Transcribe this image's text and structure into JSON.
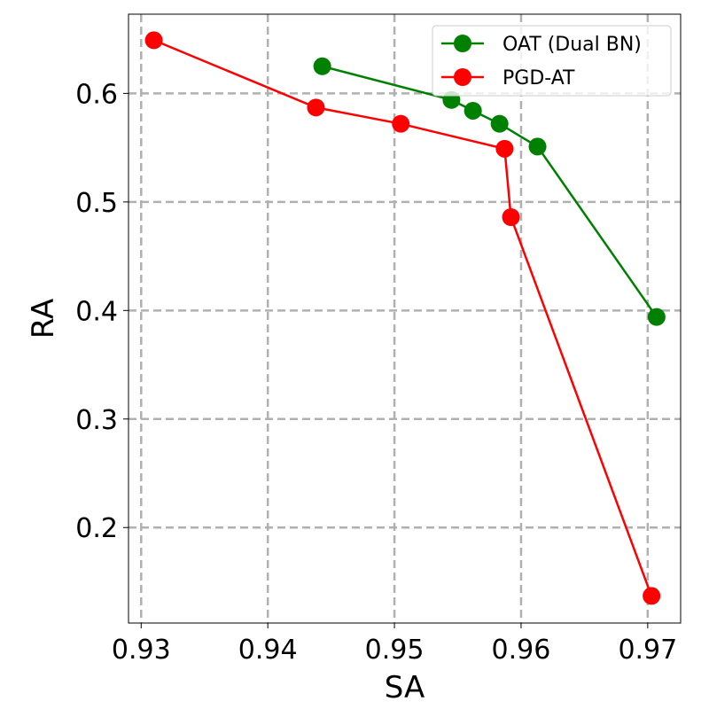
{
  "chart_data": {
    "type": "line",
    "title": "",
    "xlabel": "SA",
    "ylabel": "RA",
    "xlim": [
      0.929,
      0.9726
    ],
    "ylim": [
      0.112,
      0.673
    ],
    "xticks": [
      0.93,
      0.94,
      0.95,
      0.96,
      0.97
    ],
    "xtick_labels": [
      "0.93",
      "0.94",
      "0.95",
      "0.96",
      "0.97"
    ],
    "yticks": [
      0.2,
      0.3,
      0.4,
      0.5,
      0.6
    ],
    "ytick_labels": [
      "0.2",
      "0.3",
      "0.4",
      "0.5",
      "0.6"
    ],
    "grid": true,
    "grid_style": "dashed",
    "legend_position": "top-right",
    "series": [
      {
        "name": "OAT (Dual BN)",
        "color": "#008000",
        "marker": "circle",
        "points": [
          {
            "x": 0.9443,
            "y": 0.625
          },
          {
            "x": 0.9545,
            "y": 0.594
          },
          {
            "x": 0.9562,
            "y": 0.584
          },
          {
            "x": 0.9583,
            "y": 0.572
          },
          {
            "x": 0.9613,
            "y": 0.551
          },
          {
            "x": 0.9707,
            "y": 0.394
          }
        ]
      },
      {
        "name": "PGD-AT",
        "color": "#ff0000",
        "marker": "circle",
        "points": [
          {
            "x": 0.931,
            "y": 0.649
          },
          {
            "x": 0.9438,
            "y": 0.587
          },
          {
            "x": 0.9505,
            "y": 0.572
          },
          {
            "x": 0.9587,
            "y": 0.549
          },
          {
            "x": 0.9592,
            "y": 0.486
          },
          {
            "x": 0.9703,
            "y": 0.137
          }
        ]
      }
    ]
  }
}
